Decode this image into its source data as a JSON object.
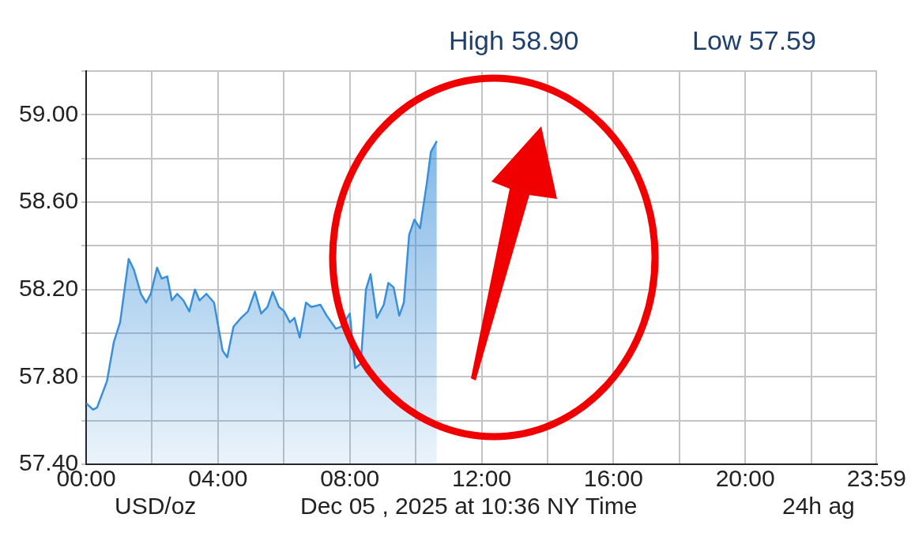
{
  "chart_data": {
    "type": "area",
    "xlabel": "Dec 05 , 2025 at 10:36 NY Time",
    "annotations": [
      "High 58.90",
      "Low 57.59",
      "24h ag",
      "USD/oz"
    ],
    "x": [
      0,
      0.21,
      0.33,
      0.63,
      0.84,
      1.03,
      1.29,
      1.45,
      1.66,
      1.82,
      1.96,
      2.15,
      2.29,
      2.46,
      2.6,
      2.76,
      2.95,
      3.13,
      3.3,
      3.44,
      3.65,
      3.88,
      4.14,
      4.28,
      4.47,
      4.7,
      4.91,
      5.12,
      5.31,
      5.5,
      5.66,
      5.85,
      6.01,
      6.18,
      6.32,
      6.48,
      6.67,
      6.83,
      7.11,
      7.3,
      7.58,
      7.74,
      8,
      8.16,
      8.33,
      8.49,
      8.63,
      8.82,
      9.03,
      9.17,
      9.33,
      9.5,
      9.64,
      9.8,
      9.96,
      10.13,
      10.34,
      10.46,
      10.64
    ],
    "series": [
      {
        "color": "#3a8fd9",
        "values": [
          57.68,
          57.65,
          57.66,
          57.78,
          57.96,
          58.05,
          58.34,
          58.29,
          58.18,
          58.14,
          58.18,
          58.3,
          58.25,
          58.26,
          58.15,
          58.18,
          58.15,
          58.1,
          58.2,
          58.15,
          58.18,
          58.14,
          57.92,
          57.89,
          58.03,
          58.07,
          58.1,
          58.19,
          58.09,
          58.12,
          58.19,
          58.12,
          58.1,
          58.05,
          58.07,
          57.98,
          58.14,
          58.12,
          58.13,
          58.08,
          58.02,
          58.03,
          58.09,
          57.84,
          57.86,
          58.2,
          58.27,
          58.07,
          58.13,
          58.23,
          58.21,
          58.08,
          58.14,
          58.45,
          58.52,
          58.48,
          58.69,
          58.83,
          58.88
        ]
      }
    ],
    "xlim": [
      0,
      24
    ],
    "xticks": [
      {
        "value": 0,
        "label": "00:00"
      },
      {
        "value": 2,
        "label": null
      },
      {
        "value": 4,
        "label": "04:00"
      },
      {
        "value": 6,
        "label": null
      },
      {
        "value": 8,
        "label": "08:00"
      },
      {
        "value": 10,
        "label": null
      },
      {
        "value": 12,
        "label": "12:00"
      },
      {
        "value": 14,
        "label": null
      },
      {
        "value": 16,
        "label": "16:00"
      },
      {
        "value": 18,
        "label": null
      },
      {
        "value": 20,
        "label": "20:00"
      },
      {
        "value": 22,
        "label": null
      },
      {
        "value": 23.983,
        "label": "23:59"
      }
    ],
    "ylim": [
      57.4,
      59.2
    ],
    "yticks": [
      {
        "value": 57.4,
        "label": "57.40"
      },
      {
        "value": 57.6,
        "label": null
      },
      {
        "value": 57.8,
        "label": "57.80"
      },
      {
        "value": 58,
        "label": null
      },
      {
        "value": 58.2,
        "label": "58.20"
      },
      {
        "value": 58.4,
        "label": null
      },
      {
        "value": 58.6,
        "label": "58.60"
      },
      {
        "value": 58.8,
        "label": null
      },
      {
        "value": 59,
        "label": "59.00"
      },
      {
        "value": 59.2,
        "label": null
      }
    ],
    "grid": true
  }
}
